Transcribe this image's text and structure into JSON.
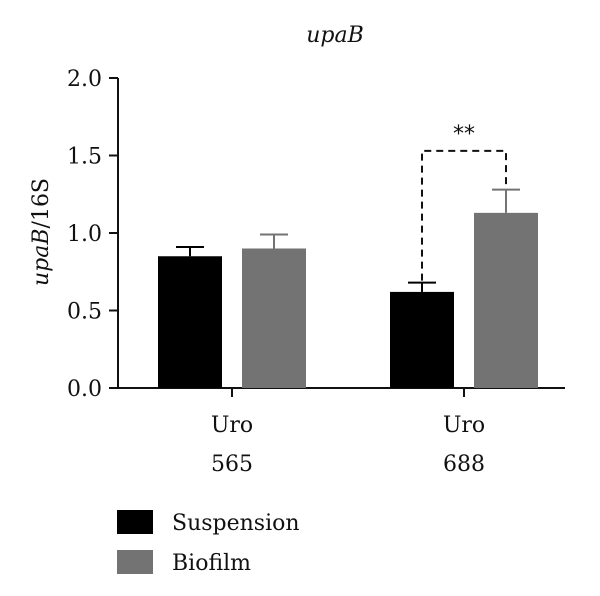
{
  "chart_data": {
    "type": "bar",
    "title": "upaB",
    "ylabel_italic": "upaB",
    "ylabel_rest": "/16S",
    "ylim": [
      0,
      2.0
    ],
    "yticks": [
      "0.0",
      "0.5",
      "1.0",
      "1.5",
      "2.0"
    ],
    "categories": [
      {
        "line1": "Uro",
        "line2": "565"
      },
      {
        "line1": "Uro",
        "line2": "688"
      }
    ],
    "series": [
      {
        "name": "Suspension",
        "color": "#000000",
        "values": [
          0.85,
          0.62
        ],
        "errors": [
          0.06,
          0.06
        ]
      },
      {
        "name": "Biofilm",
        "color": "#737373",
        "values": [
          0.9,
          1.13
        ],
        "errors": [
          0.09,
          0.15
        ]
      }
    ],
    "significance": {
      "label": "**",
      "category_index": 1,
      "level": 1.53
    },
    "legend_position": "bottom-left",
    "grid": false
  }
}
